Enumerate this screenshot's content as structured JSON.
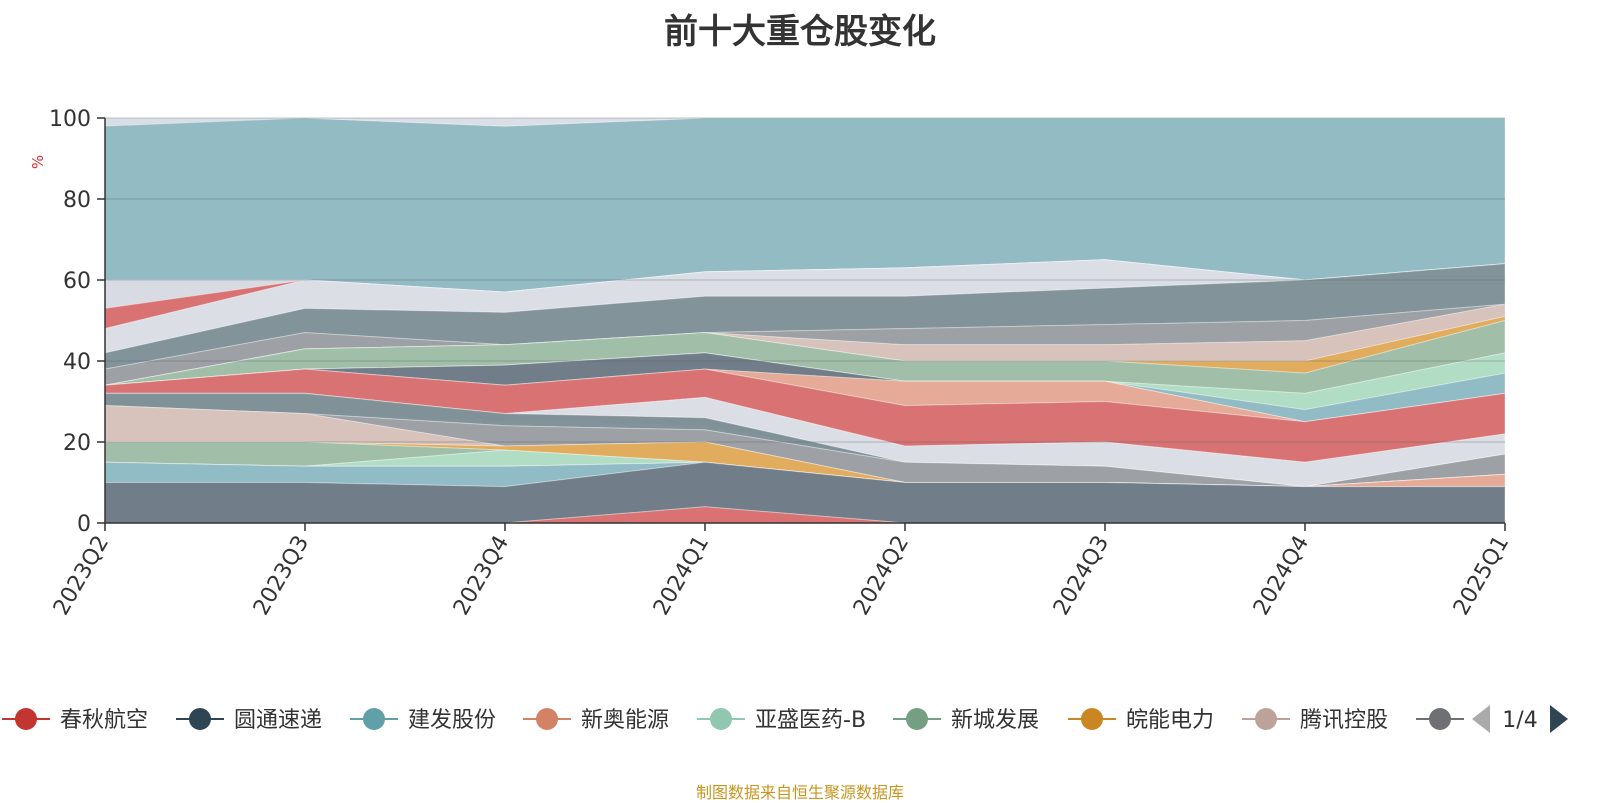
{
  "chart_data": {
    "type": "area",
    "title": "前十大重仓股变化",
    "ylabel": "%",
    "ylim": [
      0,
      100
    ],
    "yticks": [
      0,
      20,
      40,
      60,
      80,
      100
    ],
    "grid": true,
    "x": [
      "2023Q2",
      "2023Q3",
      "2023Q4",
      "2024Q1",
      "2024Q2",
      "2024Q3",
      "2024Q4",
      "2025Q1"
    ],
    "bands": [
      {
        "color": "#91bac2",
        "top": [
          100,
          100,
          98,
          100,
          100,
          100,
          100,
          100
        ],
        "bottom": [
          60,
          60,
          57,
          62,
          63,
          65,
          60,
          64
        ]
      },
      {
        "color": "#dadde4",
        "top": [
          100,
          100,
          100,
          100,
          100,
          100,
          100,
          100
        ],
        "bottom": [
          98,
          100,
          98,
          100,
          100,
          100,
          100,
          100
        ]
      },
      {
        "color": "#6e7b87",
        "top": [
          60,
          60,
          57,
          62,
          63,
          65,
          60,
          64
        ],
        "bottom": [
          53,
          60,
          57,
          62,
          63,
          65,
          60,
          64
        ]
      },
      {
        "color": "#dadde4",
        "top": [
          60,
          60,
          57,
          62,
          63,
          65,
          60,
          64
        ],
        "bottom": [
          53,
          53,
          52,
          56,
          56,
          58,
          60,
          64
        ]
      },
      {
        "color": "#d87070",
        "top": [
          53,
          60,
          57,
          62,
          63,
          65,
          60,
          64
        ],
        "bottom": [
          48,
          60,
          57,
          62,
          63,
          65,
          60,
          64
        ]
      },
      {
        "color": "#dadde4",
        "top": [
          48,
          60,
          57,
          62,
          63,
          65,
          60,
          64
        ],
        "bottom": [
          42,
          53,
          52,
          56,
          56,
          58,
          60,
          64
        ]
      },
      {
        "color": "#7f9298",
        "top": [
          42,
          53,
          52,
          56,
          56,
          58,
          60,
          64
        ],
        "bottom": [
          38,
          47,
          44,
          47,
          48,
          49,
          50,
          54
        ]
      },
      {
        "color": "#9b9ea2",
        "top": [
          38,
          47,
          44,
          47,
          48,
          49,
          50,
          54
        ],
        "bottom": [
          34,
          43,
          44,
          47,
          44,
          44,
          45,
          54
        ]
      },
      {
        "color": "#d6c1bb",
        "top": [
          34,
          43,
          44,
          47,
          44,
          44,
          45,
          54
        ],
        "bottom": [
          34,
          43,
          44,
          47,
          40,
          40,
          40,
          51
        ]
      },
      {
        "color": "#e0aa5a",
        "top": [
          34,
          43,
          44,
          47,
          40,
          40,
          40,
          51
        ],
        "bottom": [
          34,
          43,
          44,
          47,
          40,
          40,
          37,
          50
        ]
      },
      {
        "color": "#9fbea6",
        "top": [
          34,
          43,
          44,
          47,
          40,
          40,
          37,
          50
        ],
        "bottom": [
          34,
          38,
          39,
          42,
          35,
          35,
          32,
          42
        ]
      },
      {
        "color": "#b0dcc4",
        "top": [
          34,
          38,
          39,
          42,
          35,
          35,
          32,
          42
        ],
        "bottom": [
          34,
          38,
          39,
          42,
          35,
          35,
          28,
          37
        ]
      },
      {
        "color": "#8fbac4",
        "top": [
          34,
          38,
          39,
          42,
          35,
          35,
          28,
          37
        ],
        "bottom": [
          34,
          38,
          39,
          42,
          35,
          35,
          25,
          32
        ]
      },
      {
        "color": "#6e7b87",
        "top": [
          34,
          38,
          39,
          42,
          35,
          35,
          25,
          32
        ],
        "bottom": [
          34,
          38,
          34,
          38,
          35,
          35,
          25,
          32
        ]
      },
      {
        "color": "#e5a896",
        "top": [
          34,
          38,
          34,
          38,
          35,
          35,
          25,
          32
        ],
        "bottom": [
          34,
          38,
          34,
          38,
          29,
          30,
          25,
          32
        ]
      },
      {
        "color": "#d87070",
        "top": [
          34,
          38,
          34,
          38,
          29,
          30,
          25,
          32
        ],
        "bottom": [
          32,
          32,
          27,
          31,
          19,
          20,
          15,
          22
        ]
      },
      {
        "color": "#dadde4",
        "top": [
          32,
          32,
          27,
          31,
          19,
          20,
          15,
          22
        ],
        "bottom": [
          32,
          32,
          27,
          26,
          15,
          14,
          9,
          17
        ]
      },
      {
        "color": "#9b9ea2",
        "top": [
          32,
          32,
          27,
          26,
          15,
          14,
          9,
          17
        ],
        "bottom": [
          29,
          27,
          25,
          24,
          15,
          14,
          9,
          17
        ]
      },
      {
        "color": "#7f9298",
        "top": [
          32,
          32,
          27,
          26,
          15,
          14,
          9,
          17
        ],
        "bottom": [
          29,
          27,
          24,
          23,
          15,
          14,
          9,
          17
        ]
      },
      {
        "color": "#9b9ea2",
        "top": [
          29,
          27,
          24,
          23,
          15,
          14,
          9,
          17
        ],
        "bottom": [
          29,
          27,
          19,
          20,
          10,
          10,
          9,
          12
        ]
      },
      {
        "color": "#d6c1bb",
        "top": [
          29,
          27,
          19,
          20,
          10,
          10,
          9,
          12
        ],
        "bottom": [
          20,
          20,
          19,
          20,
          10,
          10,
          9,
          12
        ]
      },
      {
        "color": "#e0aa5a",
        "top": [
          20,
          20,
          19,
          20,
          10,
          10,
          9,
          12
        ],
        "bottom": [
          20,
          20,
          18,
          15,
          10,
          10,
          9,
          12
        ]
      },
      {
        "color": "#9fbea6",
        "top": [
          20,
          20,
          18,
          15,
          10,
          10,
          9,
          12
        ],
        "bottom": [
          15,
          14,
          18,
          15,
          10,
          10,
          9,
          12
        ]
      },
      {
        "color": "#b0dcc4",
        "top": [
          15,
          14,
          18,
          15,
          10,
          10,
          9,
          12
        ],
        "bottom": [
          15,
          14,
          14,
          15,
          10,
          10,
          9,
          12
        ]
      },
      {
        "color": "#e5a896",
        "top": [
          15,
          14,
          14,
          15,
          10,
          10,
          9,
          12
        ],
        "bottom": [
          15,
          14,
          14,
          15,
          10,
          10,
          9,
          9
        ]
      },
      {
        "color": "#8fbac4",
        "top": [
          15,
          14,
          14,
          15,
          10,
          10,
          9,
          9
        ],
        "bottom": [
          10,
          10,
          9,
          15,
          10,
          10,
          9,
          9
        ]
      },
      {
        "color": "#6e7b87",
        "top": [
          10,
          10,
          9,
          15,
          10,
          10,
          9,
          9
        ],
        "bottom": [
          0,
          0,
          0,
          4,
          0,
          0,
          0,
          0
        ]
      },
      {
        "color": "#d87070",
        "top": [
          0,
          0,
          0,
          4,
          0,
          0,
          0,
          0
        ],
        "bottom": [
          0,
          0,
          0,
          0,
          0,
          0,
          0,
          0
        ]
      }
    ],
    "legend": {
      "placement": "bottom",
      "items": [
        {
          "name": "春秋航空",
          "color": "#c23531"
        },
        {
          "name": "圆通速递",
          "color": "#2f4554"
        },
        {
          "name": "建发股份",
          "color": "#61a0a8"
        },
        {
          "name": "新奥能源",
          "color": "#d48265"
        },
        {
          "name": "亚盛医药-B",
          "color": "#91c7ae"
        },
        {
          "name": "新城发展",
          "color": "#749f83"
        },
        {
          "name": "皖能电力",
          "color": "#ca8622"
        },
        {
          "name": "腾讯控股",
          "color": "#bda29a"
        },
        {
          "name": "",
          "color": "#6e7074"
        }
      ],
      "page": "1/4"
    },
    "source": "制图数据来自恒生聚源数据库"
  }
}
